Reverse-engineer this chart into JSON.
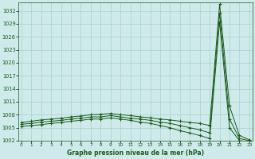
{
  "title": "Graphe pression niveau de la mer (hPa)",
  "background_color": "#ceeaea",
  "grid_color": "#aacfcf",
  "line_color": "#1a5c1a",
  "marker": "+",
  "xmin": 0,
  "xmax": 23,
  "ymin": 1002,
  "ymax": 1034,
  "yticks": [
    1002,
    1005,
    1008,
    1011,
    1014,
    1017,
    1020,
    1023,
    1026,
    1029,
    1032
  ],
  "xticks": [
    0,
    1,
    2,
    3,
    4,
    5,
    6,
    7,
    8,
    9,
    10,
    11,
    12,
    13,
    14,
    15,
    16,
    17,
    18,
    19,
    20,
    21,
    22,
    23
  ],
  "line1": [
    1006.2,
    1006.5,
    1006.8,
    1007.0,
    1007.2,
    1007.5,
    1007.7,
    1008.0,
    1008.1,
    1008.3,
    1008.0,
    1007.8,
    1007.5,
    1007.3,
    1007.0,
    1006.8,
    1006.5,
    1006.2,
    1006.0,
    1005.5,
    1033.5,
    1010.0,
    1003.2,
    1002.2
  ],
  "line2": [
    1005.8,
    1006.0,
    1006.3,
    1006.5,
    1006.7,
    1007.0,
    1007.2,
    1007.5,
    1007.5,
    1007.8,
    1007.5,
    1007.2,
    1007.0,
    1006.7,
    1006.3,
    1006.0,
    1005.5,
    1005.0,
    1004.5,
    1003.8,
    1031.5,
    1007.0,
    1002.5,
    1002.0
  ],
  "line3": [
    1005.3,
    1005.5,
    1005.7,
    1006.0,
    1006.2,
    1006.5,
    1006.7,
    1007.0,
    1007.0,
    1007.3,
    1007.0,
    1006.7,
    1006.3,
    1006.0,
    1005.5,
    1005.0,
    1004.3,
    1003.8,
    1003.2,
    1002.5,
    1029.5,
    1005.0,
    1002.0,
    1001.8
  ]
}
